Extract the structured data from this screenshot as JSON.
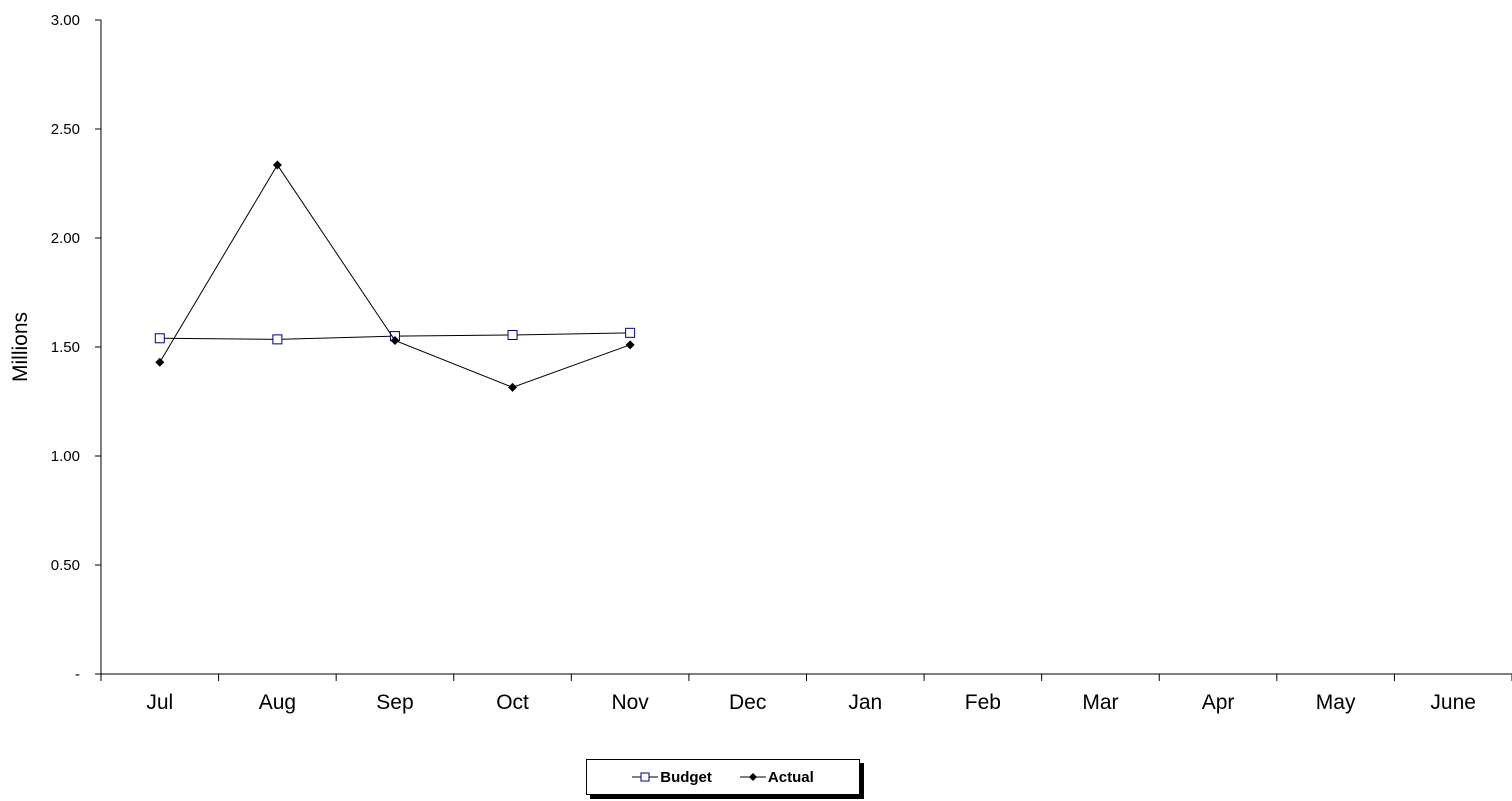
{
  "chart_data": {
    "type": "line",
    "categories": [
      "Jul",
      "Aug",
      "Sep",
      "Oct",
      "Nov",
      "Dec",
      "Jan",
      "Feb",
      "Mar",
      "Apr",
      "May",
      "June"
    ],
    "ylabel": "Millions",
    "ylim": [
      0,
      3.0
    ],
    "yticks": [
      "-",
      "0.50",
      "1.00",
      "1.50",
      "2.00",
      "2.50",
      "3.00"
    ],
    "ytick_values": [
      0,
      0.5,
      1.0,
      1.5,
      2.0,
      2.5,
      3.0
    ],
    "grid": false,
    "legend_placement": "bottom",
    "series": [
      {
        "name": "Budget",
        "values": [
          1.54,
          1.535,
          1.55,
          1.555,
          1.565,
          null,
          null,
          null,
          null,
          null,
          null,
          null
        ],
        "color": "#000080",
        "line_color": "#000000",
        "marker": "square-open"
      },
      {
        "name": "Actual",
        "values": [
          1.43,
          2.335,
          1.53,
          1.315,
          1.51,
          null,
          null,
          null,
          null,
          null,
          null,
          null
        ],
        "color": "#000000",
        "line_color": "#000000",
        "marker": "diamond-filled"
      }
    ]
  }
}
